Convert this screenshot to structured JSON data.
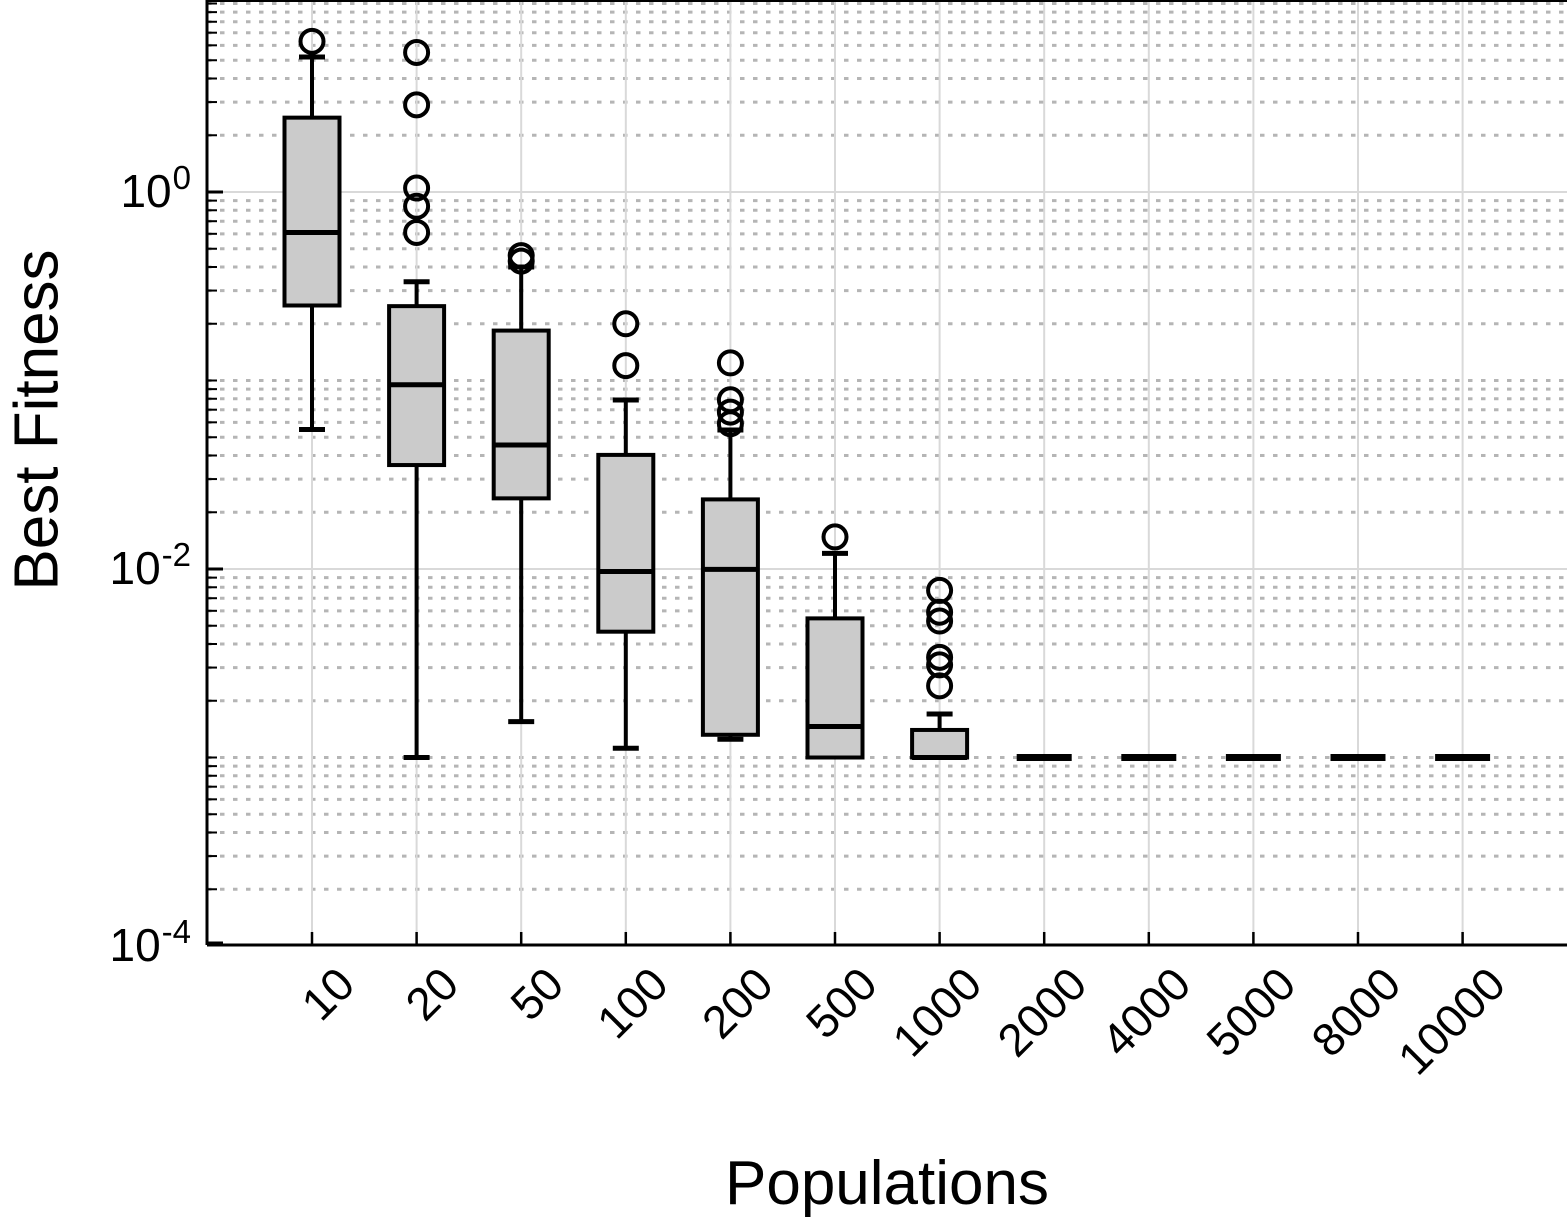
{
  "chart_data": {
    "type": "box",
    "title": "",
    "xlabel": "Populations",
    "ylabel": "Best Fitness",
    "y_scale": "log",
    "ylim": [
      0.0001,
      10.4
    ],
    "y_ticks": [
      {
        "base": "10",
        "exponent": "0",
        "value": 1
      },
      {
        "base": "10",
        "exponent": "-2",
        "value": 0.01
      },
      {
        "base": "10",
        "exponent": "-4",
        "value": 0.0001
      }
    ],
    "x_categories": [
      "10",
      "20",
      "50",
      "100",
      "200",
      "500",
      "1000",
      "2000",
      "4000",
      "5000",
      "8000",
      "10000"
    ],
    "grid": {
      "major_on": true,
      "minor_on": true,
      "major_color": "#d9d9d9",
      "minor_color": "#b5b5b5",
      "minor_multiples_per_decade": [
        2,
        3,
        4,
        5,
        6,
        7,
        8,
        9
      ],
      "dotted_unlabeled_decades": [
        0.001,
        0.1,
        10
      ]
    },
    "style": {
      "box_fill": "#cbcbcb",
      "box_edge": "#000000",
      "axis_color": "#000000"
    },
    "boxes": [
      {
        "category": "10",
        "whisker_low": 0.055,
        "q1": 0.25,
        "median": 0.61,
        "q3": 2.48,
        "whisker_high": 5.2,
        "outliers": [
          6.3
        ]
      },
      {
        "category": "20",
        "whisker_low": 0.001,
        "q1": 0.0356,
        "median": 0.095,
        "q3": 0.248,
        "whisker_high": 0.334,
        "outliers": [
          5.5,
          2.9,
          1.05,
          0.84,
          0.61
        ]
      },
      {
        "category": "50",
        "whisker_low": 0.00155,
        "q1": 0.0237,
        "median": 0.0455,
        "q3": 0.184,
        "whisker_high": 0.4,
        "outliers": [
          0.46,
          0.43
        ]
      },
      {
        "category": "100",
        "whisker_low": 0.00112,
        "q1": 0.00465,
        "median": 0.0097,
        "q3": 0.0403,
        "whisker_high": 0.0788,
        "outliers": [
          0.2,
          0.12
        ]
      },
      {
        "category": "200",
        "whisker_low": 0.00125,
        "q1": 0.00132,
        "median": 0.00996,
        "q3": 0.0234,
        "whisker_high": 0.0546,
        "outliers": [
          0.124,
          0.079,
          0.068,
          0.059
        ]
      },
      {
        "category": "500",
        "whisker_low": 0.001,
        "q1": 0.001,
        "median": 0.00146,
        "q3": 0.00547,
        "whisker_high": 0.0121,
        "outliers": [
          0.0148
        ]
      },
      {
        "category": "1000",
        "whisker_low": 0.001,
        "q1": 0.001,
        "median": 0.001,
        "q3": 0.0014,
        "whisker_high": 0.0017,
        "outliers": [
          0.0077,
          0.0059,
          0.0053,
          0.0034,
          0.0031,
          0.0024
        ]
      },
      {
        "category": "2000",
        "whisker_low": 0.001,
        "q1": 0.001,
        "median": 0.001,
        "q3": 0.001,
        "whisker_high": 0.001,
        "outliers": []
      },
      {
        "category": "4000",
        "whisker_low": 0.001,
        "q1": 0.001,
        "median": 0.001,
        "q3": 0.001,
        "whisker_high": 0.001,
        "outliers": []
      },
      {
        "category": "5000",
        "whisker_low": 0.001,
        "q1": 0.001,
        "median": 0.001,
        "q3": 0.001,
        "whisker_high": 0.001,
        "outliers": []
      },
      {
        "category": "8000",
        "whisker_low": 0.001,
        "q1": 0.001,
        "median": 0.001,
        "q3": 0.001,
        "whisker_high": 0.001,
        "outliers": []
      },
      {
        "category": "10000",
        "whisker_low": 0.001,
        "q1": 0.001,
        "median": 0.001,
        "q3": 0.001,
        "whisker_high": 0.001,
        "outliers": []
      }
    ]
  }
}
